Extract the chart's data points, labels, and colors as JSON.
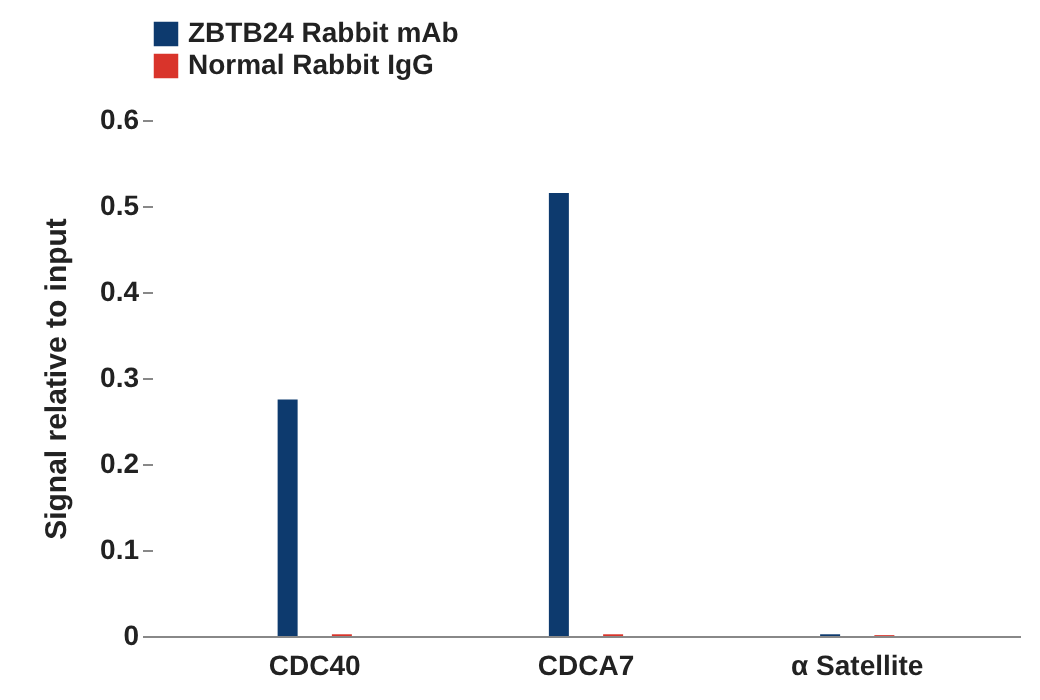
{
  "chart_data": {
    "type": "bar",
    "ylabel": "Signal relative to input",
    "categories": [
      "CDC40",
      "CDCA7",
      "α Satellite"
    ],
    "series": [
      {
        "name": "ZBTB24 Rabbit mAb",
        "color": "#0d3a6e",
        "values": [
          0.275,
          0.515,
          0.002
        ]
      },
      {
        "name": "Normal Rabbit IgG",
        "color": "#d9342b",
        "values": [
          0.002,
          0.002,
          0.001
        ]
      }
    ],
    "ylim": [
      0,
      0.6
    ],
    "yticks": [
      {
        "value": 0,
        "label": "0"
      },
      0.1,
      0.2,
      0.3,
      0.4,
      0.5,
      0.6
    ],
    "grid": false,
    "legend": "top left"
  }
}
